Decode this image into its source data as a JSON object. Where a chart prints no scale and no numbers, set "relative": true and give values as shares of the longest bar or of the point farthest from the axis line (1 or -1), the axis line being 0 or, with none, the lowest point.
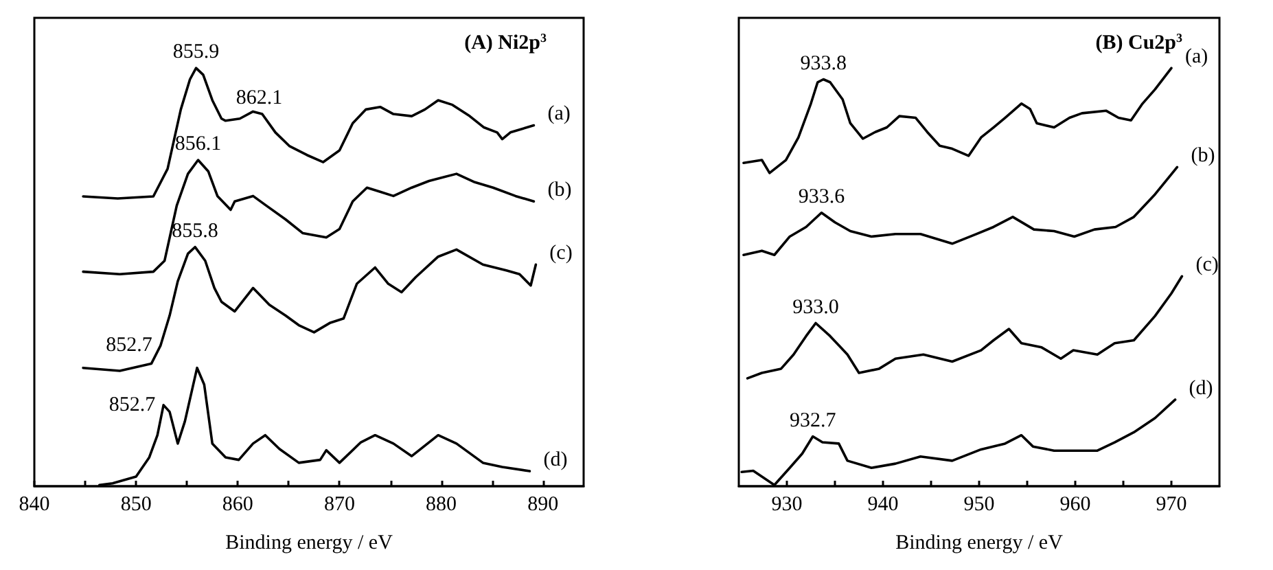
{
  "chart_data": [
    {
      "type": "line",
      "title": "(A) Ni2p$^{3}$",
      "xlabel": "Binding energy / eV",
      "relative": true,
      "xlim": [
        840,
        894
      ],
      "xticks": [
        840,
        {
          "value": 845,
          "label": null
        },
        850,
        {
          "value": 855,
          "label": null
        },
        860,
        {
          "value": 865,
          "label": null
        },
        870,
        {
          "value": 875,
          "label": null
        },
        880,
        {
          "value": 885,
          "label": null
        },
        890
      ],
      "annotations": [
        {
          "text": "855.9",
          "x": 855.9,
          "y": 1.0
        },
        {
          "text": "862.1",
          "x": 862.1,
          "y": 0.89
        },
        {
          "text": "856.1",
          "x": 856.1,
          "y": 0.78
        },
        {
          "text": "855.8",
          "x": 855.8,
          "y": 0.572
        },
        {
          "text": "852.7",
          "x": 852.4,
          "y": 0.336
        },
        {
          "text": "852.7",
          "x": 852.7,
          "y": 0.194
        }
      ],
      "series": [
        {
          "name": "(a)",
          "color": "#000000",
          "x": [
            844.8,
            848.2,
            851.7,
            853.1,
            854.4,
            855.3,
            855.9,
            856.6,
            857.5,
            858.4,
            858.8,
            860.2,
            861.5,
            862.4,
            863.7,
            865.1,
            866.8,
            868.4,
            870.0,
            871.3,
            872.6,
            874.0,
            875.3,
            877.1,
            878.4,
            879.7,
            881.1,
            882.8,
            884.2,
            885.5,
            886.0,
            886.8,
            889.1
          ],
          "values": [
            0.693,
            0.688,
            0.693,
            0.759,
            0.901,
            0.973,
            1.0,
            0.984,
            0.923,
            0.879,
            0.874,
            0.879,
            0.896,
            0.89,
            0.846,
            0.813,
            0.792,
            0.775,
            0.803,
            0.868,
            0.901,
            0.907,
            0.89,
            0.885,
            0.901,
            0.923,
            0.912,
            0.885,
            0.858,
            0.846,
            0.83,
            0.846,
            0.863
          ]
        },
        {
          "name": "(b)",
          "color": "#000000",
          "x": [
            844.8,
            848.4,
            851.7,
            852.8,
            854.0,
            855.1,
            856.1,
            857.1,
            858.0,
            859.3,
            859.7,
            861.5,
            862.8,
            864.7,
            866.4,
            868.7,
            870.0,
            871.3,
            872.7,
            874.0,
            875.3,
            877.1,
            878.8,
            881.5,
            883.3,
            885.1,
            887.3,
            889.1
          ],
          "values": [
            0.513,
            0.507,
            0.513,
            0.539,
            0.671,
            0.747,
            0.78,
            0.753,
            0.694,
            0.661,
            0.681,
            0.694,
            0.671,
            0.638,
            0.605,
            0.595,
            0.615,
            0.681,
            0.714,
            0.704,
            0.694,
            0.714,
            0.73,
            0.747,
            0.727,
            0.714,
            0.694,
            0.681
          ]
        },
        {
          "name": "(c)",
          "color": "#000000",
          "x": [
            844.8,
            848.4,
            851.5,
            852.4,
            853.3,
            854.1,
            855.1,
            855.8,
            856.8,
            857.7,
            858.4,
            859.7,
            861.5,
            863.1,
            864.7,
            866.0,
            867.5,
            869.1,
            870.4,
            871.7,
            873.5,
            874.8,
            876.1,
            877.5,
            879.7,
            881.5,
            884.1,
            886.4,
            887.7,
            888.8,
            889.3
          ],
          "values": [
            0.283,
            0.276,
            0.293,
            0.336,
            0.408,
            0.49,
            0.556,
            0.572,
            0.539,
            0.474,
            0.441,
            0.418,
            0.474,
            0.434,
            0.408,
            0.385,
            0.368,
            0.391,
            0.401,
            0.484,
            0.523,
            0.484,
            0.464,
            0.5,
            0.549,
            0.566,
            0.53,
            0.516,
            0.507,
            0.48,
            0.53
          ]
        },
        {
          "name": "(d)",
          "color": "#000000",
          "x": [
            846.4,
            847.7,
            850.0,
            851.3,
            852.1,
            852.7,
            853.3,
            854.1,
            854.8,
            856.0,
            856.7,
            857.5,
            858.8,
            860.1,
            861.5,
            862.7,
            864.1,
            866.0,
            868.1,
            868.7,
            870.0,
            872.1,
            873.5,
            875.3,
            877.1,
            879.7,
            881.5,
            884.1,
            886.0,
            888.7
          ],
          "values": [
            0.003,
            0.007,
            0.023,
            0.069,
            0.122,
            0.194,
            0.178,
            0.102,
            0.155,
            0.283,
            0.243,
            0.102,
            0.069,
            0.063,
            0.102,
            0.122,
            0.089,
            0.056,
            0.063,
            0.086,
            0.056,
            0.105,
            0.122,
            0.102,
            0.072,
            0.122,
            0.102,
            0.056,
            0.046,
            0.036
          ]
        }
      ]
    },
    {
      "type": "line",
      "title": "(B) Cu2p$^{3}$",
      "xlabel": "Binding energy / eV",
      "relative": true,
      "xlim": [
        925,
        975
      ],
      "xticks": [
        930,
        {
          "value": 935,
          "label": null
        },
        940,
        {
          "value": 945,
          "label": null
        },
        950,
        {
          "value": 955,
          "label": null
        },
        960,
        {
          "value": 965,
          "label": null
        },
        970
      ],
      "annotations": [
        {
          "text": "933.8",
          "x": 933.8,
          "y": 0.973
        },
        {
          "text": "933.6",
          "x": 933.6,
          "y": 0.654
        },
        {
          "text": "933.0",
          "x": 933.0,
          "y": 0.39
        },
        {
          "text": "932.7",
          "x": 932.7,
          "y": 0.119
        }
      ],
      "series": [
        {
          "name": "(a)",
          "color": "#000000",
          "x": [
            925.5,
            927.4,
            928.2,
            929.9,
            931.2,
            932.5,
            933.2,
            933.8,
            934.5,
            935.8,
            936.6,
            937.9,
            939.2,
            940.4,
            941.7,
            943.4,
            944.6,
            945.9,
            947.2,
            948.9,
            950.2,
            951.5,
            952.7,
            954.4,
            955.3,
            956.0,
            957.8,
            959.4,
            960.7,
            963.2,
            964.5,
            965.8,
            967.0,
            968.3,
            970.0
          ],
          "values": [
            0.773,
            0.78,
            0.749,
            0.78,
            0.834,
            0.915,
            0.966,
            0.973,
            0.966,
            0.925,
            0.868,
            0.831,
            0.847,
            0.858,
            0.885,
            0.881,
            0.847,
            0.814,
            0.807,
            0.79,
            0.834,
            0.858,
            0.881,
            0.915,
            0.902,
            0.868,
            0.858,
            0.881,
            0.892,
            0.898,
            0.881,
            0.875,
            0.915,
            0.949,
            1.0
          ]
        },
        {
          "name": "(b)",
          "color": "#000000",
          "x": [
            925.5,
            927.4,
            928.7,
            930.3,
            932.0,
            933.6,
            935.0,
            936.6,
            938.8,
            941.3,
            943.9,
            947.2,
            949.7,
            951.5,
            953.5,
            955.7,
            957.8,
            959.9,
            962.0,
            964.2,
            966.1,
            968.3,
            970.6
          ],
          "values": [
            0.553,
            0.563,
            0.553,
            0.597,
            0.62,
            0.654,
            0.631,
            0.61,
            0.597,
            0.603,
            0.603,
            0.58,
            0.603,
            0.62,
            0.644,
            0.614,
            0.61,
            0.597,
            0.614,
            0.62,
            0.644,
            0.698,
            0.763
          ]
        },
        {
          "name": "(c)",
          "color": "#000000",
          "x": [
            925.9,
            927.4,
            929.4,
            930.7,
            932.0,
            933.0,
            934.5,
            936.3,
            937.5,
            939.6,
            941.3,
            944.2,
            947.2,
            950.2,
            951.5,
            953.1,
            954.4,
            956.5,
            958.5,
            959.8,
            962.3,
            964.1,
            966.1,
            968.3,
            970.0,
            971.1
          ],
          "values": [
            0.258,
            0.271,
            0.281,
            0.315,
            0.359,
            0.39,
            0.359,
            0.315,
            0.271,
            0.281,
            0.305,
            0.315,
            0.298,
            0.325,
            0.349,
            0.376,
            0.342,
            0.332,
            0.305,
            0.325,
            0.315,
            0.342,
            0.349,
            0.407,
            0.461,
            0.502
          ]
        },
        {
          "name": "(d)",
          "color": "#000000",
          "x": [
            925.3,
            926.5,
            928.7,
            930.3,
            931.6,
            932.7,
            933.7,
            935.4,
            936.3,
            938.8,
            941.3,
            943.9,
            947.2,
            950.2,
            952.7,
            954.4,
            955.6,
            957.8,
            959.8,
            962.3,
            964.1,
            966.1,
            968.3,
            970.4
          ],
          "values": [
            0.034,
            0.037,
            0.003,
            0.044,
            0.078,
            0.119,
            0.105,
            0.102,
            0.061,
            0.044,
            0.054,
            0.071,
            0.061,
            0.088,
            0.102,
            0.122,
            0.095,
            0.085,
            0.085,
            0.085,
            0.105,
            0.129,
            0.163,
            0.207
          ]
        }
      ]
    }
  ]
}
